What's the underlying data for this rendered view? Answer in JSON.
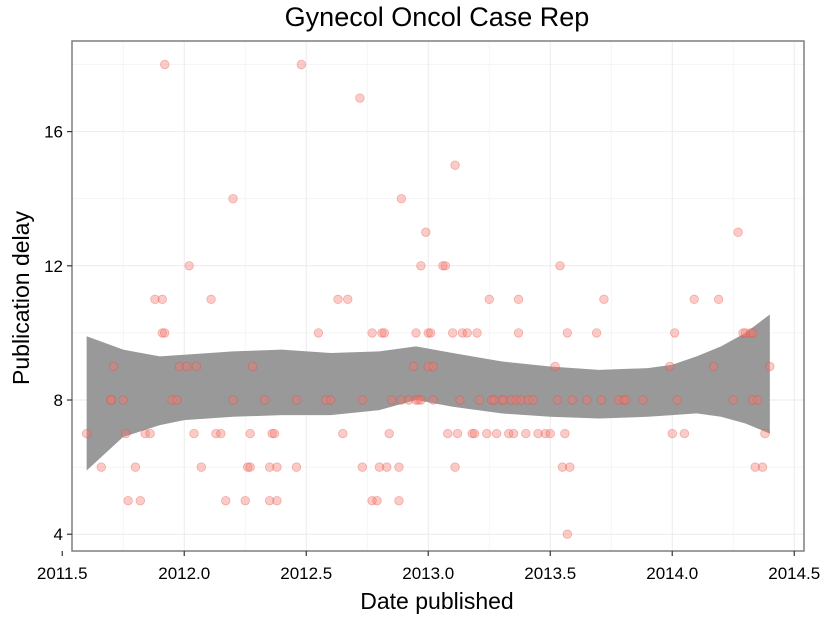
{
  "chart_data": {
    "type": "scatter",
    "title": "Gynecol Oncol Case Rep",
    "xlabel": "Date published",
    "ylabel": "Publication delay",
    "xlim": [
      2011.54,
      2014.54
    ],
    "ylim": [
      3.5,
      18.7
    ],
    "xticks": [
      2011.5,
      2012.0,
      2012.5,
      2013.0,
      2013.5,
      2014.0,
      2014.5
    ],
    "xtick_labels": [
      "2011.5",
      "2012.0",
      "2012.5",
      "2013.0",
      "2013.5",
      "2014.0",
      "2014.5"
    ],
    "yticks": [
      4,
      8,
      12,
      16
    ],
    "ytick_labels": [
      "4",
      "8",
      "12",
      "16"
    ],
    "grid": true,
    "legend": "none",
    "point_color": "#f8766d",
    "band_color": "#999999",
    "series": [
      {
        "points": [
          [
            2011.6,
            7
          ],
          [
            2011.66,
            6
          ],
          [
            2011.7,
            8
          ],
          [
            2011.7,
            8
          ],
          [
            2011.71,
            9
          ],
          [
            2011.75,
            8
          ],
          [
            2011.76,
            7
          ],
          [
            2011.77,
            5
          ],
          [
            2011.8,
            6
          ],
          [
            2011.82,
            5
          ],
          [
            2011.84,
            7
          ],
          [
            2011.86,
            7
          ],
          [
            2011.88,
            11
          ],
          [
            2011.91,
            11
          ],
          [
            2011.91,
            10
          ],
          [
            2011.92,
            10
          ],
          [
            2011.92,
            18
          ],
          [
            2011.95,
            8
          ],
          [
            2011.97,
            8
          ],
          [
            2011.98,
            9
          ],
          [
            2012.01,
            9
          ],
          [
            2012.02,
            12
          ],
          [
            2012.04,
            7
          ],
          [
            2012.05,
            9
          ],
          [
            2012.07,
            6
          ],
          [
            2012.11,
            11
          ],
          [
            2012.13,
            7
          ],
          [
            2012.15,
            7
          ],
          [
            2012.17,
            5
          ],
          [
            2012.2,
            8
          ],
          [
            2012.2,
            14
          ],
          [
            2012.25,
            5
          ],
          [
            2012.26,
            6
          ],
          [
            2012.27,
            6
          ],
          [
            2012.27,
            7
          ],
          [
            2012.28,
            9
          ],
          [
            2012.33,
            8
          ],
          [
            2012.35,
            5
          ],
          [
            2012.35,
            6
          ],
          [
            2012.36,
            7
          ],
          [
            2012.37,
            7
          ],
          [
            2012.38,
            6
          ],
          [
            2012.38,
            5
          ],
          [
            2012.46,
            6
          ],
          [
            2012.46,
            8
          ],
          [
            2012.48,
            18
          ],
          [
            2012.55,
            10
          ],
          [
            2012.58,
            8
          ],
          [
            2012.6,
            8
          ],
          [
            2012.63,
            11
          ],
          [
            2012.65,
            7
          ],
          [
            2012.67,
            11
          ],
          [
            2012.72,
            17
          ],
          [
            2012.73,
            6
          ],
          [
            2012.73,
            8
          ],
          [
            2012.77,
            10
          ],
          [
            2012.77,
            5
          ],
          [
            2012.79,
            5
          ],
          [
            2012.8,
            6
          ],
          [
            2012.81,
            10
          ],
          [
            2012.82,
            10
          ],
          [
            2012.83,
            6
          ],
          [
            2012.84,
            7
          ],
          [
            2012.85,
            8
          ],
          [
            2012.88,
            6
          ],
          [
            2012.88,
            5
          ],
          [
            2012.89,
            14
          ],
          [
            2012.89,
            8
          ],
          [
            2012.92,
            8
          ],
          [
            2012.94,
            9
          ],
          [
            2012.95,
            10
          ],
          [
            2012.95,
            8
          ],
          [
            2012.96,
            8
          ],
          [
            2012.97,
            12
          ],
          [
            2012.97,
            8
          ],
          [
            2012.99,
            13
          ],
          [
            2013.0,
            9
          ],
          [
            2013.0,
            10
          ],
          [
            2013.01,
            10
          ],
          [
            2013.02,
            9
          ],
          [
            2013.02,
            8
          ],
          [
            2013.06,
            12
          ],
          [
            2013.07,
            12
          ],
          [
            2013.08,
            7
          ],
          [
            2013.1,
            10
          ],
          [
            2013.11,
            15
          ],
          [
            2013.11,
            6
          ],
          [
            2013.12,
            7
          ],
          [
            2013.13,
            8
          ],
          [
            2013.14,
            10
          ],
          [
            2013.16,
            10
          ],
          [
            2013.18,
            7
          ],
          [
            2013.19,
            7
          ],
          [
            2013.2,
            10
          ],
          [
            2013.21,
            8
          ],
          [
            2013.24,
            7
          ],
          [
            2013.25,
            11
          ],
          [
            2013.26,
            8
          ],
          [
            2013.27,
            8
          ],
          [
            2013.28,
            7
          ],
          [
            2013.3,
            8
          ],
          [
            2013.31,
            8
          ],
          [
            2013.33,
            7
          ],
          [
            2013.34,
            8
          ],
          [
            2013.35,
            7
          ],
          [
            2013.36,
            8
          ],
          [
            2013.37,
            11
          ],
          [
            2013.37,
            10
          ],
          [
            2013.38,
            8
          ],
          [
            2013.4,
            7
          ],
          [
            2013.41,
            8
          ],
          [
            2013.43,
            8
          ],
          [
            2013.45,
            7
          ],
          [
            2013.48,
            7
          ],
          [
            2013.5,
            7
          ],
          [
            2013.52,
            9
          ],
          [
            2013.53,
            8
          ],
          [
            2013.54,
            12
          ],
          [
            2013.55,
            6
          ],
          [
            2013.56,
            7
          ],
          [
            2013.57,
            4
          ],
          [
            2013.57,
            10
          ],
          [
            2013.58,
            6
          ],
          [
            2013.59,
            8
          ],
          [
            2013.65,
            8
          ],
          [
            2013.69,
            10
          ],
          [
            2013.71,
            8
          ],
          [
            2013.72,
            11
          ],
          [
            2013.78,
            8
          ],
          [
            2013.8,
            8
          ],
          [
            2013.81,
            8
          ],
          [
            2013.88,
            8
          ],
          [
            2013.99,
            9
          ],
          [
            2014.0,
            7
          ],
          [
            2014.01,
            10
          ],
          [
            2014.02,
            8
          ],
          [
            2014.05,
            7
          ],
          [
            2014.09,
            11
          ],
          [
            2014.17,
            9
          ],
          [
            2014.19,
            11
          ],
          [
            2014.25,
            8
          ],
          [
            2014.27,
            13
          ],
          [
            2014.29,
            10
          ],
          [
            2014.3,
            10
          ],
          [
            2014.32,
            10
          ],
          [
            2014.33,
            8
          ],
          [
            2014.33,
            10
          ],
          [
            2014.34,
            6
          ],
          [
            2014.35,
            8
          ],
          [
            2014.37,
            6
          ],
          [
            2014.38,
            7
          ],
          [
            2014.4,
            9
          ]
        ]
      }
    ],
    "smooth_band": {
      "x": [
        2011.6,
        2011.75,
        2011.9,
        2012.0,
        2012.2,
        2012.4,
        2012.6,
        2012.8,
        2012.95,
        2013.1,
        2013.3,
        2013.5,
        2013.7,
        2013.9,
        2014.0,
        2014.1,
        2014.2,
        2014.3,
        2014.4
      ],
      "upper": [
        9.9,
        9.5,
        9.3,
        9.35,
        9.45,
        9.5,
        9.4,
        9.45,
        9.6,
        9.4,
        9.15,
        9.0,
        8.9,
        8.95,
        9.05,
        9.3,
        9.6,
        10.0,
        10.55
      ],
      "lower": [
        5.9,
        6.9,
        7.25,
        7.4,
        7.5,
        7.55,
        7.55,
        7.7,
        8.0,
        7.8,
        7.6,
        7.5,
        7.45,
        7.5,
        7.55,
        7.6,
        7.5,
        7.3,
        7.0
      ]
    }
  }
}
